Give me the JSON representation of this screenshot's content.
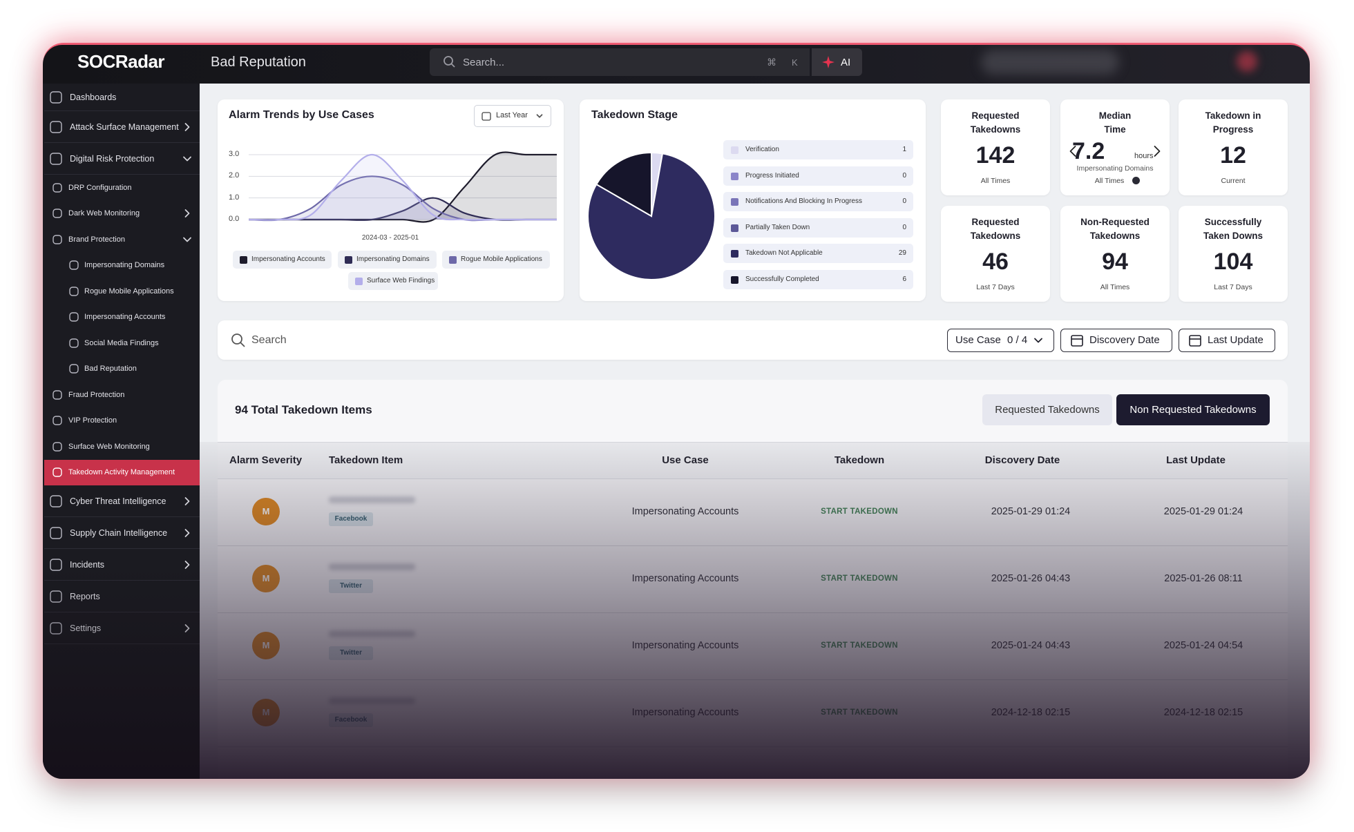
{
  "header": {
    "logo": "SOCRadar",
    "page_title": "Bad Reputation",
    "search_placeholder": "Search...",
    "shortcut_keys": [
      "⌘",
      "K"
    ],
    "ai_button": "AI"
  },
  "sidebar": {
    "items": [
      {
        "label": "Dashboards",
        "level": 0
      },
      {
        "label": "Attack Surface Management",
        "level": 0,
        "expand": "right"
      },
      {
        "label": "Digital Risk Protection",
        "level": 0,
        "expand": "down"
      },
      {
        "label": "DRP Configuration",
        "level": 1
      },
      {
        "label": "Dark Web Monitoring",
        "level": 1,
        "expand": "right"
      },
      {
        "label": "Brand Protection",
        "level": 1,
        "expand": "down"
      },
      {
        "label": "Impersonating Domains",
        "level": 2
      },
      {
        "label": "Rogue Mobile Applications",
        "level": 2
      },
      {
        "label": "Impersonating Accounts",
        "level": 2
      },
      {
        "label": "Social Media Findings",
        "level": 2
      },
      {
        "label": "Bad Reputation",
        "level": 2
      },
      {
        "label": "Fraud Protection",
        "level": 1
      },
      {
        "label": "VIP Protection",
        "level": 1
      },
      {
        "label": "Surface Web Monitoring",
        "level": 1
      },
      {
        "label": "Takedown Activity Management",
        "level": 1,
        "active": true
      },
      {
        "label": "Cyber Threat Intelligence",
        "level": 0,
        "expand": "right"
      },
      {
        "label": "Supply Chain Intelligence",
        "level": 0,
        "expand": "right"
      },
      {
        "label": "Incidents",
        "level": 0,
        "expand": "right"
      },
      {
        "label": "Reports",
        "level": 0
      },
      {
        "label": "Settings",
        "level": 0,
        "expand": "right"
      }
    ]
  },
  "chart_data": [
    {
      "type": "line",
      "title": "Alarm Trends by Use Cases",
      "filter": "Last Year",
      "xlabel": "2024-03 - 2025-01",
      "categories": [
        null,
        null,
        null,
        null,
        null,
        null,
        null,
        null,
        null,
        null,
        null
      ],
      "ylim": [
        0,
        3
      ],
      "yticks": [
        {
          "value": 0,
          "label": "0.0"
        },
        {
          "value": 1,
          "label": "1.0"
        },
        {
          "value": 2,
          "label": "2.0"
        },
        {
          "value": 3,
          "label": "3.0"
        }
      ],
      "series": [
        {
          "name": "Impersonating Accounts",
          "color": "#1e1c2c",
          "values": [
            0,
            0,
            0,
            0,
            0,
            0,
            0,
            1.5,
            3,
            3,
            3
          ]
        },
        {
          "name": "Impersonating Domains",
          "color": "#2f2c55",
          "values": [
            0,
            0,
            0,
            0,
            0,
            0.4,
            1,
            0.3,
            0,
            0,
            0
          ]
        },
        {
          "name": "Rogue Mobile Applications",
          "color": "#6d68a8",
          "values": [
            0,
            0,
            0.5,
            1.6,
            2,
            1.6,
            0.5,
            0,
            0,
            0,
            0
          ]
        },
        {
          "name": "Surface Web Findings",
          "color": "#b3aeea",
          "values": [
            0,
            0,
            0.2,
            1.8,
            3,
            1.8,
            0.2,
            0,
            0,
            0,
            0
          ]
        }
      ]
    },
    {
      "type": "pie",
      "title": "Takedown Stage",
      "categories": [
        "Verification",
        "Progress Initiated",
        "Notifications And Blocking In Progress",
        "Partially Taken Down",
        "Takedown Not Applicable",
        "Successfully Completed"
      ],
      "values": [
        1,
        0,
        0,
        0,
        29,
        6
      ],
      "colors": [
        "#dcdaf0",
        "#8b85c9",
        "#7a75b8",
        "#5c5898",
        "#2e2b5f",
        "#16152b"
      ]
    }
  ],
  "stats": [
    {
      "label": "Requested Takedowns",
      "value": 142,
      "caption": "All Times"
    },
    {
      "label": "Median Time",
      "value": 7.2,
      "unit": "hours",
      "detail": "Impersonating Domains",
      "caption": "All Times"
    },
    {
      "label": "Takedown in Progress",
      "value": 12,
      "caption": "Current"
    },
    {
      "label": "Requested Takedowns",
      "value": 46,
      "caption": "Last 7 Days"
    },
    {
      "label": "Non-Requested Takedowns",
      "value": 94,
      "caption": "All Times"
    },
    {
      "label": "Successfully Taken Downs",
      "value": 104,
      "caption": "Last 7 Days"
    }
  ],
  "filters": {
    "search_placeholder": "Search",
    "use_case": "Use Case",
    "use_case_count": "0 / 4",
    "discovery_date": "Discovery Date",
    "last_update": "Last Update"
  },
  "table": {
    "title": "94 Total Takedown Items",
    "tabs": [
      {
        "label": "Requested Takedowns"
      },
      {
        "label": "Non Requested Takedowns",
        "active": true
      }
    ],
    "columns": [
      "Alarm Severity",
      "Takedown Item",
      "Use Case",
      "Takedown",
      "Discovery Date",
      "Last Update"
    ],
    "rows": [
      {
        "severity": "M",
        "platform": "Facebook",
        "use_case": "Impersonating Accounts",
        "takedown": "START TAKEDOWN",
        "discovery_date": "2025-01-29 01:24",
        "last_update": "2025-01-29 01:24"
      },
      {
        "severity": "M",
        "platform": "Twitter",
        "use_case": "Impersonating Accounts",
        "takedown": "START TAKEDOWN",
        "discovery_date": "2025-01-26 04:43",
        "last_update": "2025-01-26 08:11"
      },
      {
        "severity": "M",
        "platform": "Twitter",
        "use_case": "Impersonating Accounts",
        "takedown": "START TAKEDOWN",
        "discovery_date": "2025-01-24 04:43",
        "last_update": "2025-01-24 04:54"
      },
      {
        "severity": "M",
        "platform": "Facebook",
        "use_case": "Impersonating Accounts",
        "takedown": "START TAKEDOWN",
        "discovery_date": "2024-12-18 02:15",
        "last_update": "2024-12-18 02:15"
      }
    ]
  }
}
